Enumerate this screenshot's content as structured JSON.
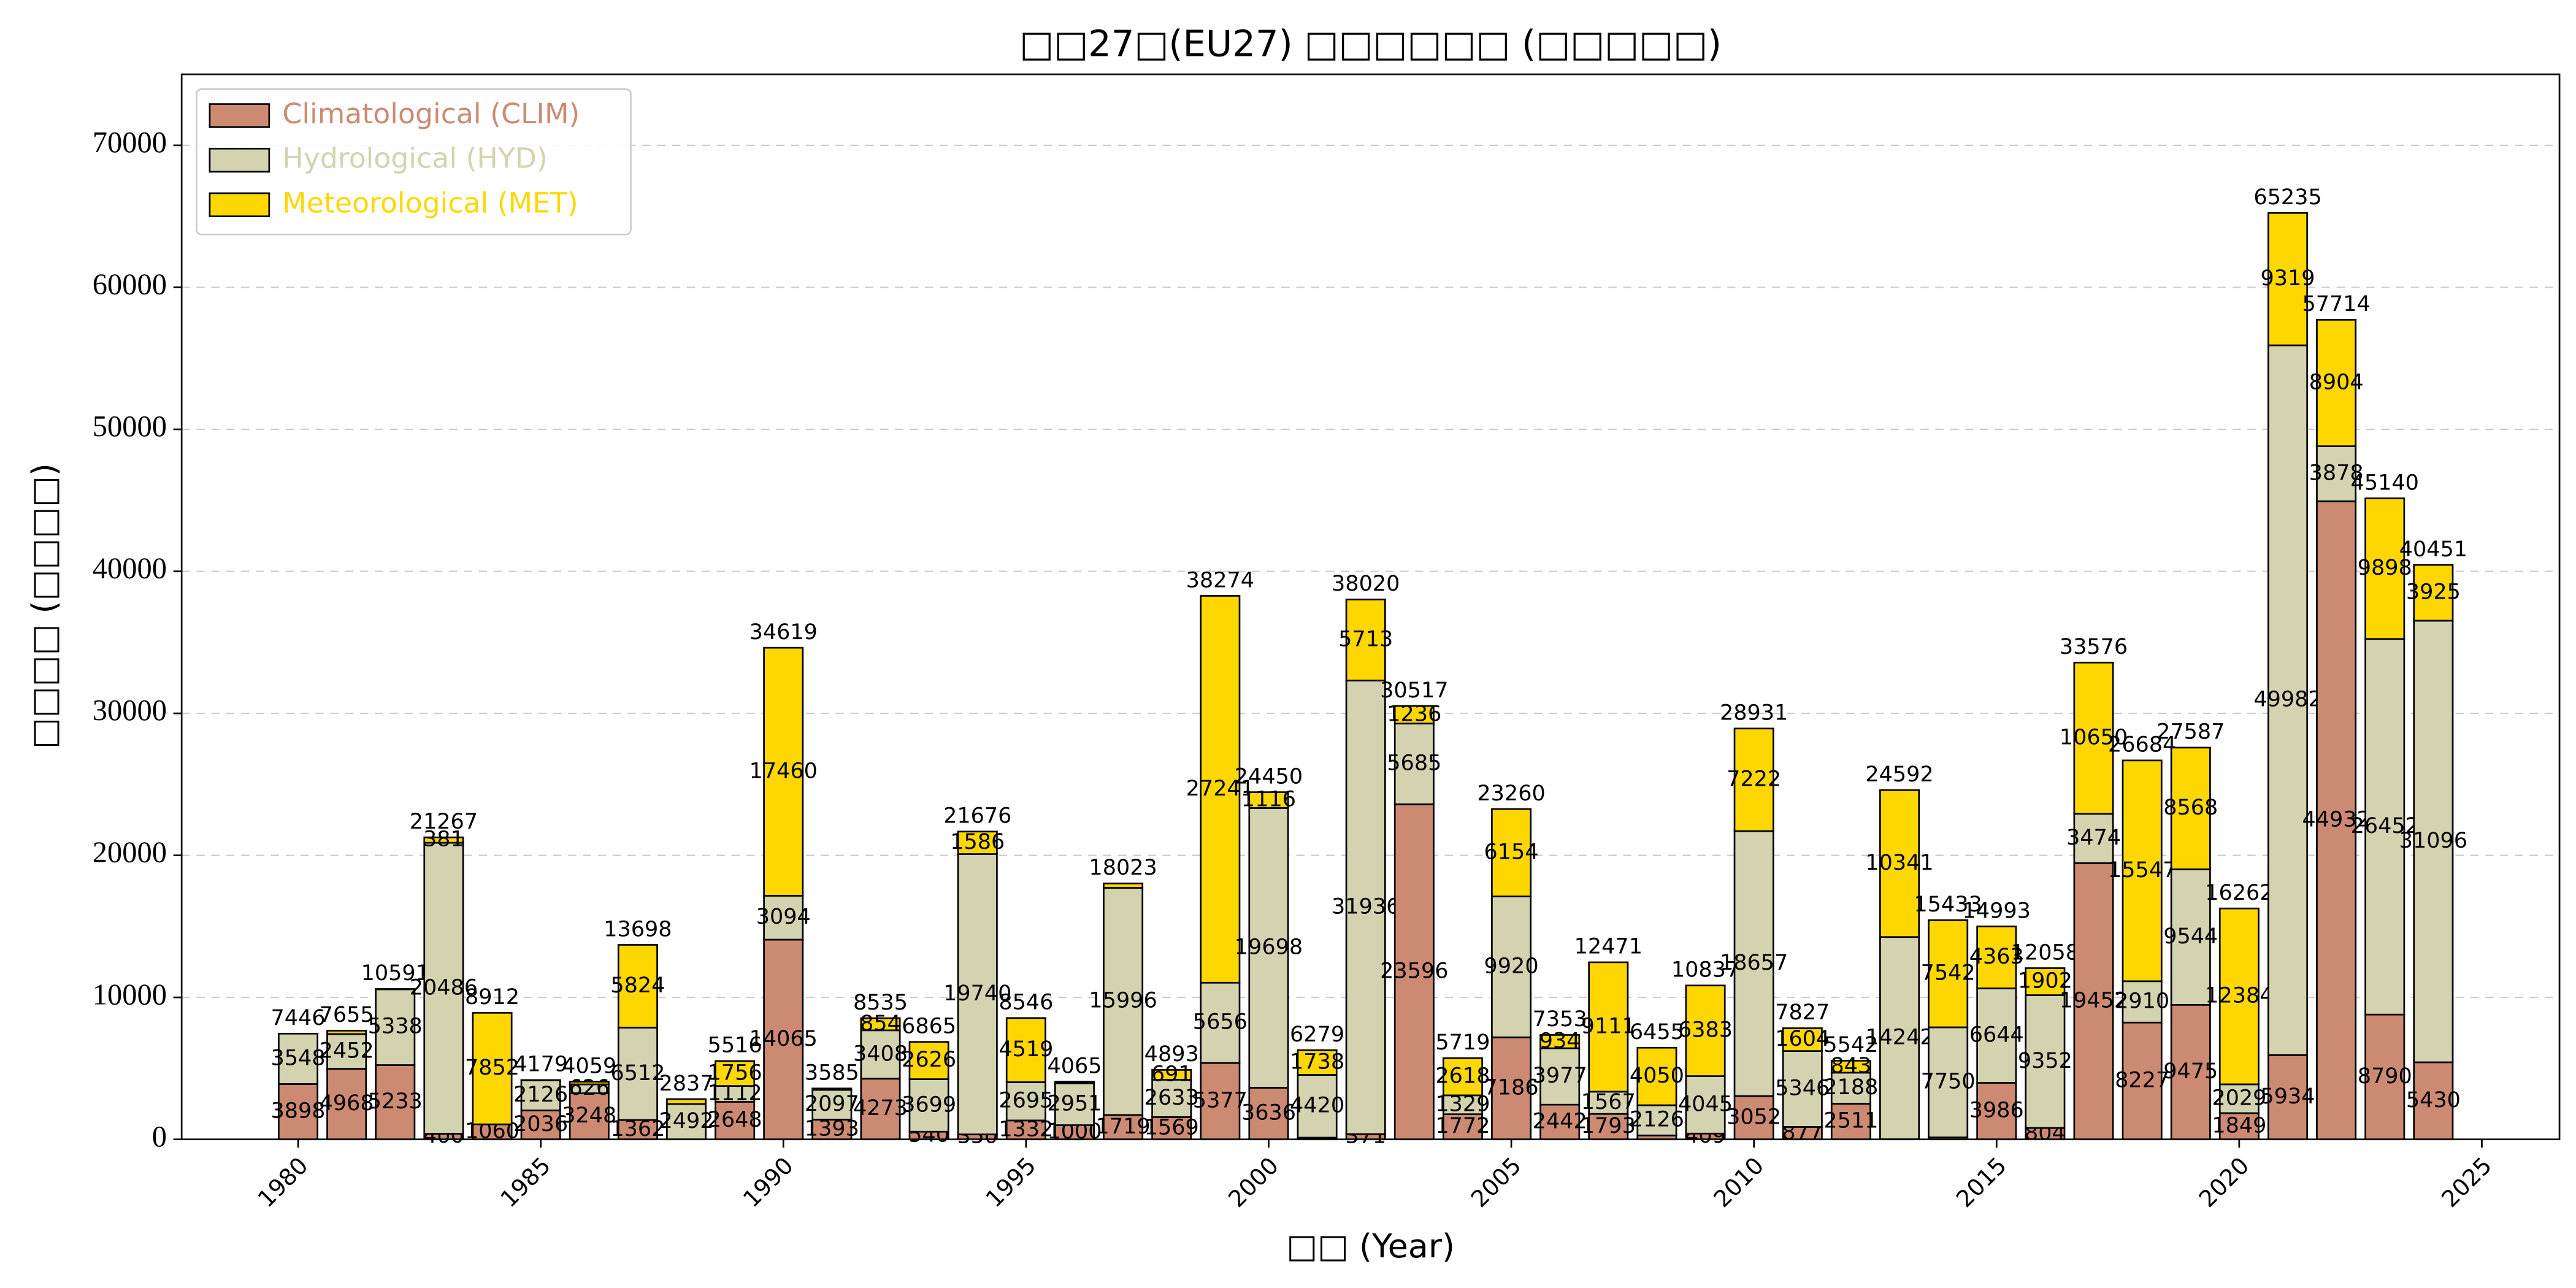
{
  "chart_data": {
    "type": "stacked_bar",
    "title": "□□27□(EU27) □□□□□□ (□□□□□)",
    "x_label": "□□ (Year)",
    "y_label": "□□□□ (□□□□)",
    "x": [
      1980,
      1981,
      1982,
      1983,
      1984,
      1985,
      1986,
      1987,
      1988,
      1989,
      1990,
      1991,
      1992,
      1993,
      1994,
      1995,
      1996,
      1997,
      1998,
      1999,
      2000,
      2001,
      2002,
      2003,
      2004,
      2005,
      2006,
      2007,
      2008,
      2009,
      2010,
      2011,
      2012,
      2013,
      2014,
      2015,
      2016,
      2017,
      2018,
      2019,
      2020,
      2021,
      2022,
      2023,
      2024
    ],
    "series": [
      {
        "name": "Climatological (CLIM)",
        "color": "#cd8a73",
        "values": [
          3898,
          4968,
          5233,
          400,
          1060,
          2036,
          3248,
          1362,
          0,
          2648,
          14065,
          1393,
          4273,
          540,
          350,
          1332,
          1000,
          1719,
          1569,
          5377,
          3636,
          121,
          371,
          23596,
          1772,
          7186,
          2442,
          1793,
          279,
          409,
          3052,
          877,
          2511,
          9,
          141,
          3986,
          804,
          19452,
          8227,
          9475,
          1849,
          5934,
          44932,
          8790,
          5430
        ]
      },
      {
        "name": "Hydrological (HYD)",
        "color": "#d3d3b0",
        "values": [
          3548,
          2452,
          5338,
          20486,
          0,
          2126,
          626,
          6512,
          2492,
          1112,
          3094,
          2097,
          3408,
          3699,
          19740,
          2695,
          2951,
          15996,
          2633,
          5656,
          19698,
          4420,
          31936,
          5685,
          1329,
          9920,
          3977,
          1567,
          2126,
          4045,
          18657,
          5346,
          2188,
          14242,
          7750,
          6644,
          9352,
          3474,
          2910,
          9544,
          2029,
          49982,
          3878,
          26452,
          31096
        ]
      },
      {
        "name": "Meteorological (MET)",
        "color": "#ffd700",
        "values": [
          0,
          235,
          20,
          381,
          7852,
          17,
          185,
          5824,
          345,
          1756,
          17460,
          95,
          854,
          2626,
          1586,
          4519,
          114,
          308,
          691,
          27241,
          1116,
          1738,
          5713,
          1236,
          2618,
          6154,
          934,
          9111,
          4050,
          6383,
          7222,
          1604,
          843,
          10341,
          7542,
          4363,
          1902,
          10650,
          15547,
          8568,
          12384,
          9319,
          8904,
          9898,
          3925
        ]
      }
    ],
    "totals": [
      7446,
      7655,
      10591,
      21267,
      8912,
      4179,
      4059,
      13698,
      2837,
      5516,
      34619,
      3585,
      8535,
      6865,
      21676,
      8546,
      4065,
      18023,
      4893,
      38274,
      24450,
      6279,
      38020,
      30517,
      5719,
      23260,
      7353,
      12471,
      6455,
      10837,
      28931,
      7827,
      5542,
      24592,
      15433,
      14993,
      12058,
      33576,
      26684,
      27587,
      16262,
      65235,
      57714,
      45140,
      40451
    ],
    "xlim": [
      1977.6,
      2026.6
    ],
    "xticks": [
      1980,
      1985,
      1990,
      1995,
      2000,
      2005,
      2010,
      2015,
      2020,
      2025
    ],
    "ylim": [
      0,
      75000
    ],
    "yticks": [
      0,
      10000,
      20000,
      30000,
      40000,
      50000,
      60000,
      70000
    ],
    "grid": true,
    "legend": "upper-left"
  }
}
